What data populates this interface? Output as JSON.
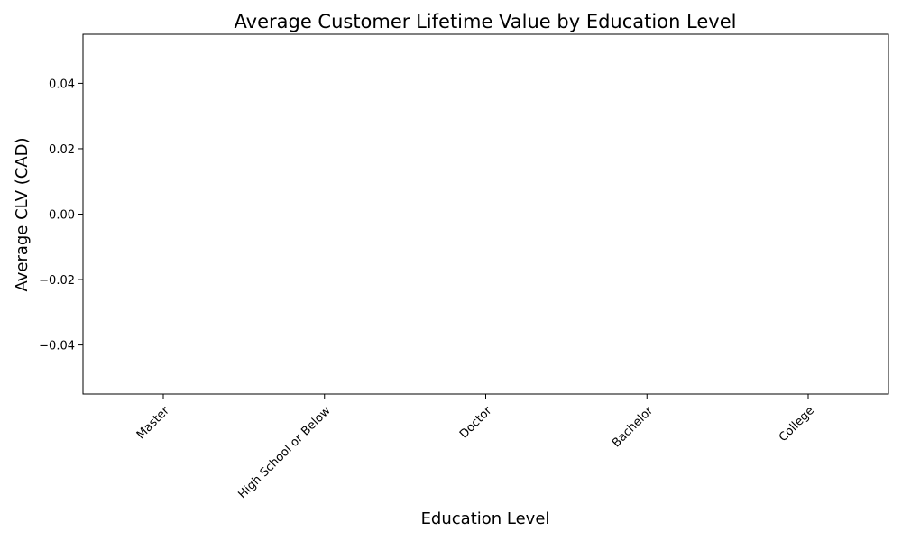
{
  "chart_data": {
    "type": "bar",
    "title": "Average Customer Lifetime Value by Education Level",
    "xlabel": "Education Level",
    "ylabel": "Average CLV (CAD)",
    "categories": [
      "Master",
      "High School or Below",
      "Doctor",
      "Bachelor",
      "College"
    ],
    "values": [
      null,
      null,
      null,
      null,
      null
    ],
    "ylim": [
      -0.055,
      0.055
    ],
    "yticks": [
      0.04,
      0.02,
      0.0,
      -0.02,
      -0.04
    ],
    "ytick_labels": [
      "0.04",
      "0.02",
      "0.00",
      "−0.02",
      "−0.04"
    ],
    "bar_color": "#1f77b4",
    "grid": false,
    "legend": "none"
  }
}
